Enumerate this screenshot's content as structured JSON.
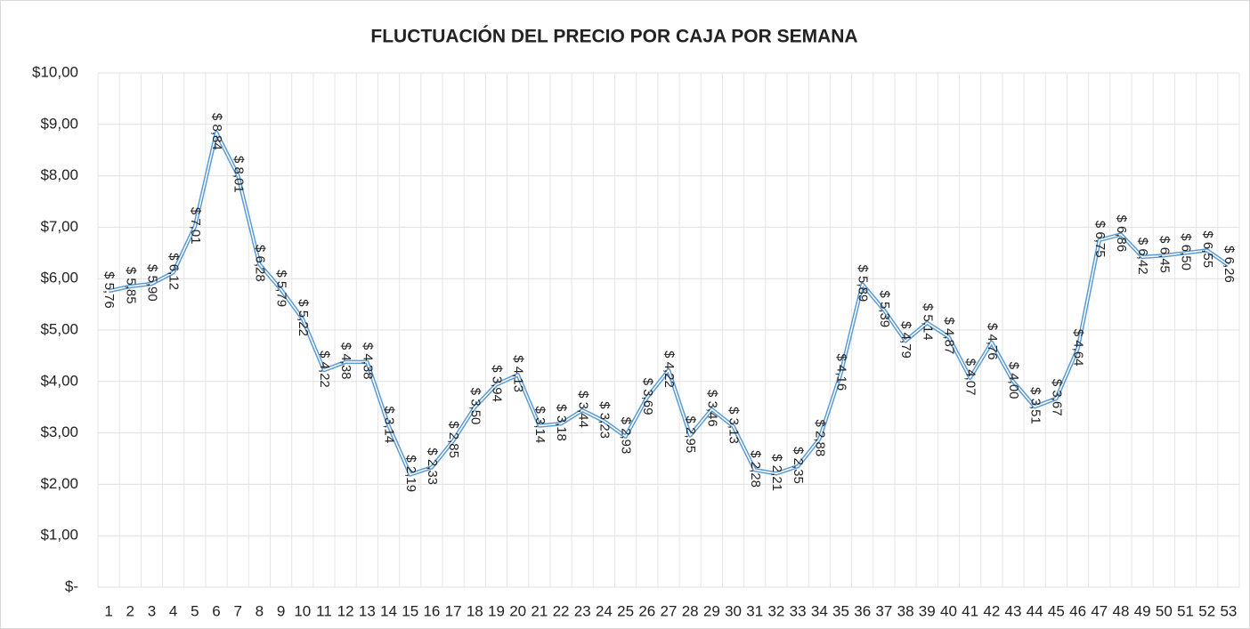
{
  "chart_data": {
    "type": "line",
    "title": "FLUCTUACIÓN DEL PRECIO POR CAJA POR SEMANA",
    "categories": [
      "1",
      "2",
      "3",
      "4",
      "5",
      "6",
      "7",
      "8",
      "9",
      "10",
      "11",
      "12",
      "13",
      "14",
      "15",
      "16",
      "17",
      "18",
      "19",
      "20",
      "21",
      "22",
      "23",
      "24",
      "25",
      "26",
      "27",
      "28",
      "29",
      "30",
      "31",
      "32",
      "33",
      "34",
      "35",
      "36",
      "37",
      "38",
      "39",
      "40",
      "41",
      "42",
      "43",
      "44",
      "45",
      "46",
      "47",
      "48",
      "49",
      "50",
      "51",
      "52",
      "53"
    ],
    "series": [
      {
        "name": "Precio por caja",
        "color": "#5b9bd5",
        "values": [
          5.76,
          5.85,
          5.9,
          6.12,
          7.01,
          8.84,
          8.01,
          6.28,
          5.79,
          5.22,
          4.22,
          4.38,
          4.38,
          3.14,
          2.19,
          2.33,
          2.85,
          3.5,
          3.94,
          4.13,
          3.14,
          3.18,
          3.44,
          3.23,
          2.93,
          3.69,
          4.22,
          2.95,
          3.46,
          3.13,
          2.28,
          2.21,
          2.35,
          2.88,
          4.16,
          5.89,
          5.39,
          4.79,
          5.14,
          4.87,
          4.07,
          4.76,
          4.0,
          3.51,
          3.67,
          4.64,
          6.75,
          6.86,
          6.42,
          6.45,
          6.5,
          6.55,
          6.26
        ],
        "value_labels": [
          "$ 5,76",
          "$ 5,85",
          "$ 5,90",
          "$ 6,12",
          "$ 7,01",
          "$ 8,84",
          "$ 8,01",
          "$ 6,28",
          "$ 5,79",
          "$ 5,22",
          "$ 4,22",
          "$ 4,38",
          "$ 4,38",
          "$ 3,14",
          "$ 2,19",
          "$ 2,33",
          "$ 2,85",
          "$ 3,50",
          "$ 3,94",
          "$ 4,13",
          "$ 3,14",
          "$ 3,18",
          "$ 3,44",
          "$ 3,23",
          "$ 2,93",
          "$ 3,69",
          "$ 4,22",
          "$ 2,95",
          "$ 3,46",
          "$ 3,13",
          "$ 2,28",
          "$ 2,21",
          "$ 2,35",
          "$ 2,88",
          "$ 4,16",
          "$ 5,89",
          "$ 5,39",
          "$ 4,79",
          "$ 5,14",
          "$ 4,87",
          "$ 4,07",
          "$ 4,76",
          "$ 4,00",
          "$ 3,51",
          "$ 3,67",
          "$ 4,64",
          "$ 6,75",
          "$ 6,86",
          "$ 6,42",
          "$ 6,45",
          "$ 6,50",
          "$ 6,55",
          "$ 6,26"
        ]
      }
    ],
    "ylim": [
      0,
      10
    ],
    "yticks": [
      {
        "value": 0,
        "label": "$-"
      },
      {
        "value": 1,
        "label": "$1,00"
      },
      {
        "value": 2,
        "label": "$2,00"
      },
      {
        "value": 3,
        "label": "$3,00"
      },
      {
        "value": 4,
        "label": "$4,00"
      },
      {
        "value": 5,
        "label": "$5,00"
      },
      {
        "value": 6,
        "label": "$6,00"
      },
      {
        "value": 7,
        "label": "$7,00"
      },
      {
        "value": 8,
        "label": "$8,00"
      },
      {
        "value": 9,
        "label": "$9,00"
      },
      {
        "value": 10,
        "label": "$10,00"
      }
    ],
    "grid": true
  }
}
